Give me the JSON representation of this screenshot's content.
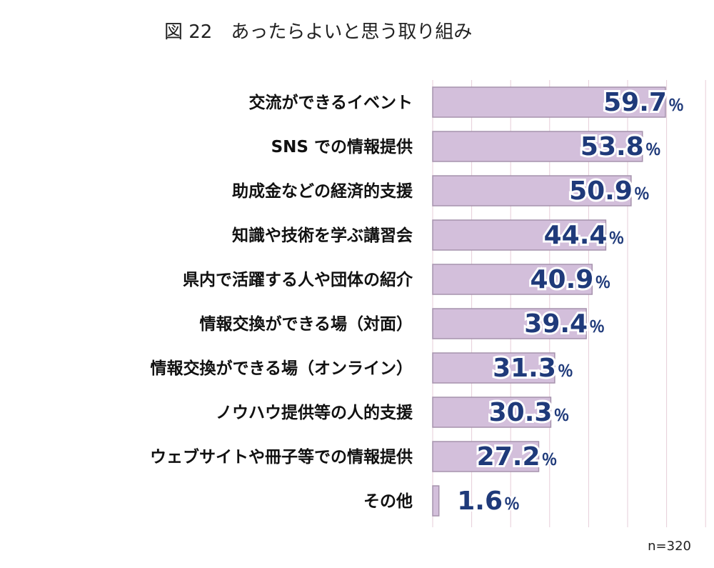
{
  "chart_data": {
    "type": "bar",
    "orientation": "horizontal",
    "title": "図 22　あったらよいと思う取り組み",
    "categories": [
      "交流ができるイベント",
      "SNS での情報提供",
      "助成金などの経済的支援",
      "知識や技術を学ぶ講習会",
      "県内で活躍する人や団体の紹介",
      "情報交換ができる場（対面）",
      "情報交換ができる場（オンライン）",
      "ノウハウ提供等の人的支援",
      "ウェブサイトや冊子等での情報提供",
      "その他"
    ],
    "values": [
      59.7,
      53.8,
      50.9,
      44.4,
      40.9,
      39.4,
      31.3,
      30.3,
      27.2,
      1.6
    ],
    "value_labels": [
      "59.7",
      "53.8",
      "50.9",
      "44.4",
      "40.9",
      "39.4",
      "31.3",
      "30.3",
      "27.2",
      "1.6"
    ],
    "unit": "％",
    "xlim": [
      0,
      70
    ],
    "grid": true,
    "note": "n=320",
    "colors": {
      "bar_fill": "#d3bfdb",
      "bar_stroke": "#a693ad",
      "gridline": "#e6cdd8",
      "value_text": "#1f3a7a"
    }
  }
}
